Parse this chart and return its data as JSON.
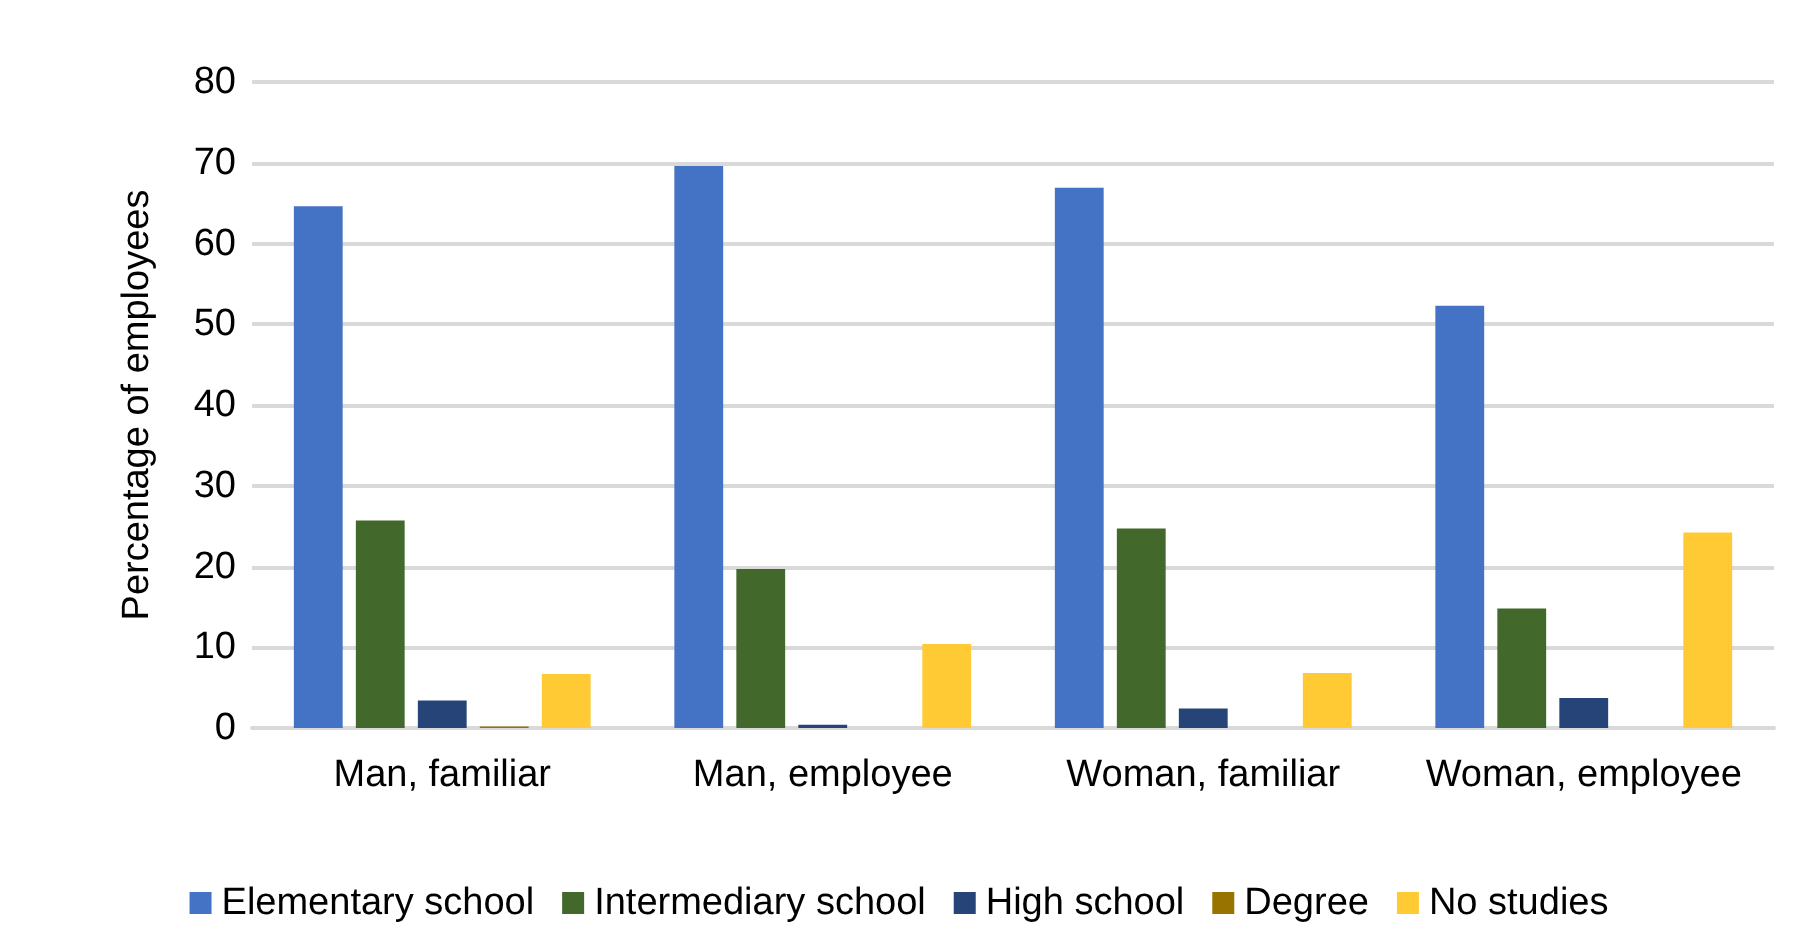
{
  "chart_data": {
    "type": "bar",
    "ylabel": "Percentage of employees",
    "categories": [
      "Man, familiar",
      "Man, employee",
      "Woman, familiar",
      "Woman, employee"
    ],
    "series": [
      {
        "name": "Elementary school",
        "color": "#4472c4",
        "values": [
          64.6,
          69.6,
          66.9,
          52.3
        ]
      },
      {
        "name": "Intermediary school",
        "color": "#43682b",
        "values": [
          25.7,
          19.7,
          24.7,
          14.8
        ]
      },
      {
        "name": "High school",
        "color": "#264478",
        "values": [
          3.4,
          0.4,
          2.4,
          3.7
        ]
      },
      {
        "name": "Degree",
        "color": "#997300",
        "values": [
          0.2,
          0,
          0,
          0
        ]
      },
      {
        "name": "No studies",
        "color": "#ffca33",
        "values": [
          6.7,
          10.4,
          6.8,
          24.2
        ]
      }
    ],
    "ylim": [
      0,
      80
    ],
    "yticks": [
      0,
      10,
      20,
      30,
      40,
      50,
      60,
      70,
      80
    ],
    "grid": "y",
    "legend": "bottom"
  }
}
